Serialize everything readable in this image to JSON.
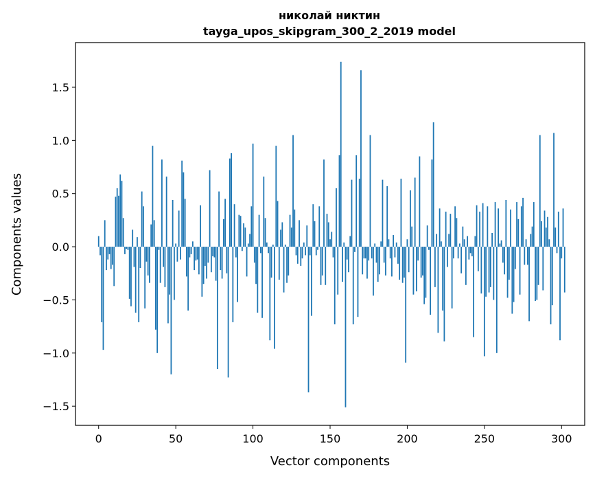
{
  "chart_data": {
    "type": "bar",
    "title_line1": "николай никтин",
    "title_line2": "tayga_upos_skipgram_300_2_2019 model",
    "xlabel": "Vector components",
    "ylabel": "Components values",
    "xlim": [
      -15,
      315
    ],
    "ylim": [
      -1.68,
      1.92
    ],
    "x_ticks": [
      0,
      50,
      100,
      150,
      200,
      250,
      300
    ],
    "x_tick_labels": [
      "0",
      "50",
      "100",
      "150",
      "200",
      "250",
      "300"
    ],
    "y_ticks": [
      -1.5,
      -1.0,
      -0.5,
      0.0,
      0.5,
      1.0,
      1.5
    ],
    "y_tick_labels": [
      "−1.5",
      "−1.0",
      "−0.5",
      "0.0",
      "0.5",
      "1.0",
      "1.5"
    ],
    "grid": false,
    "bar_color": "#1f77b4",
    "values": [
      0.1,
      -0.08,
      -0.71,
      -0.97,
      0.25,
      -0.22,
      -0.12,
      -0.07,
      -0.21,
      -0.17,
      -0.37,
      0.47,
      0.55,
      0.48,
      0.68,
      0.62,
      0.27,
      -0.07,
      -0.02,
      -0.03,
      -0.49,
      -0.56,
      0.16,
      -0.19,
      -0.62,
      0.09,
      -0.71,
      -0.2,
      0.52,
      0.38,
      -0.58,
      -0.14,
      -0.27,
      -0.34,
      0.21,
      0.95,
      0.25,
      -0.78,
      -1.0,
      -0.03,
      -0.34,
      0.82,
      -0.19,
      -0.38,
      0.66,
      -0.72,
      -0.45,
      -1.2,
      0.44,
      -0.5,
      0.03,
      -0.14,
      0.34,
      -0.12,
      0.81,
      0.7,
      0.45,
      -0.28,
      -0.6,
      -0.1,
      -0.07,
      0.05,
      -0.22,
      -0.13,
      -0.12,
      -0.26,
      0.39,
      -0.47,
      -0.35,
      -0.18,
      -0.3,
      -0.15,
      0.72,
      -0.24,
      -0.09,
      -0.1,
      -0.32,
      -1.15,
      0.52,
      -0.22,
      -0.3,
      0.26,
      0.45,
      -0.25,
      -1.23,
      0.83,
      0.88,
      -0.71,
      0.4,
      -0.1,
      -0.52,
      0.3,
      0.29,
      -0.04,
      0.22,
      0.18,
      -0.28,
      0.03,
      0.12,
      0.38,
      0.97,
      -0.15,
      -0.35,
      -0.62,
      0.3,
      -0.06,
      -0.67,
      0.66,
      0.27,
      0.04,
      -0.06,
      -0.88,
      -0.29,
      0.02,
      -0.96,
      0.95,
      0.43,
      -0.31,
      0.16,
      0.23,
      -0.43,
      0.02,
      -0.34,
      -0.27,
      0.3,
      0.18,
      1.05,
      0.35,
      -0.08,
      -0.16,
      0.25,
      -0.18,
      -0.11,
      0.04,
      -0.08,
      0.2,
      -1.37,
      -0.08,
      -0.65,
      0.4,
      0.24,
      -0.08,
      -0.03,
      0.38,
      -0.36,
      -0.27,
      0.82,
      -0.36,
      0.31,
      0.23,
      0.07,
      0.14,
      -0.1,
      -0.73,
      0.55,
      -0.45,
      0.86,
      1.74,
      -0.33,
      0.04,
      -1.51,
      -0.12,
      -0.24,
      0.1,
      0.63,
      -0.73,
      -0.05,
      0.86,
      -0.66,
      0.64,
      1.66,
      -0.26,
      -0.11,
      -0.11,
      -0.3,
      -0.13,
      1.05,
      -0.11,
      -0.46,
      0.03,
      -0.15,
      -0.33,
      -0.26,
      0.05,
      0.63,
      -0.15,
      -0.27,
      0.57,
      0.07,
      -0.11,
      -0.28,
      0.11,
      -0.1,
      0.04,
      -0.16,
      -0.31,
      0.64,
      -0.34,
      -0.29,
      -1.09,
      0.07,
      -0.24,
      0.53,
      0.19,
      -0.45,
      0.65,
      -0.42,
      -0.13,
      0.85,
      -0.29,
      -0.27,
      -0.54,
      -0.48,
      0.2,
      -0.03,
      -0.64,
      0.82,
      1.17,
      -0.38,
      0.12,
      -0.81,
      0.36,
      0.05,
      -0.6,
      -0.89,
      0.33,
      -0.19,
      0.12,
      0.31,
      -0.58,
      -0.11,
      0.38,
      0.27,
      -0.11,
      0.03,
      -0.25,
      0.19,
      0.07,
      -0.36,
      0.1,
      -0.12,
      -0.06,
      -0.09,
      -0.85,
      0.1,
      0.39,
      -0.23,
      0.33,
      -0.44,
      0.41,
      -1.03,
      -0.47,
      0.38,
      -0.43,
      -0.38,
      0.13,
      -0.5,
      0.42,
      -1.0,
      0.36,
      0.03,
      0.06,
      -0.15,
      -0.26,
      0.44,
      -0.48,
      -0.31,
      0.35,
      -0.63,
      -0.52,
      -0.21,
      0.42,
      0.26,
      -0.45,
      0.38,
      0.46,
      -0.17,
      0.07,
      -0.17,
      -0.7,
      0.12,
      0.19,
      0.42,
      -0.51,
      -0.5,
      -0.36,
      1.05,
      0.24,
      -0.41,
      0.34,
      0.18,
      0.28,
      0.07,
      -0.73,
      -0.55,
      1.07,
      0.18,
      -0.06,
      0.33,
      -0.88,
      -0.11,
      0.36,
      -0.43
    ]
  }
}
